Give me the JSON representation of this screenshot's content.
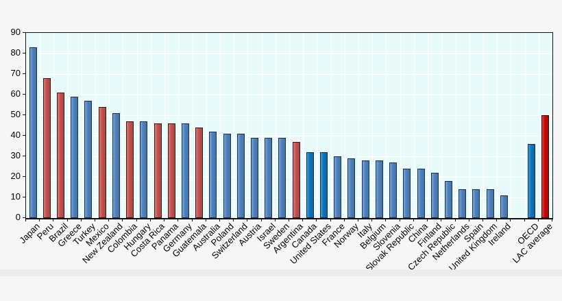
{
  "figure": {
    "background": "#f6f6f6",
    "bottom_strip_color": "#ececec"
  },
  "chart_data": {
    "type": "bar",
    "title": "",
    "xlabel": "",
    "ylabel": "",
    "ylim": [
      0,
      90
    ],
    "ytick_step": 10,
    "ytick_labels": [
      "0",
      "10",
      "20",
      "30",
      "40",
      "50",
      "60",
      "70",
      "80",
      "90"
    ],
    "grid": {
      "horizontal": true,
      "vertical": true,
      "color": "#ffffff"
    },
    "plot_background": "#e9fafa",
    "axis_color": "#111111",
    "legend": null,
    "colors": {
      "oecd_country": "#4d80bd",
      "oecd_country_edge": "#1b2f4d",
      "lac_country": "#c0504d",
      "lac_country_edge": "#3c1412",
      "highlight_country": "#0e72b8",
      "highlight_country_edge": "#0b2d4d",
      "lac_average": "#c40707",
      "lac_average_edge": "#470303"
    },
    "bars": [
      {
        "label": "Japan",
        "value": 83,
        "color_key": "oecd_country"
      },
      {
        "label": "Peru",
        "value": 68,
        "color_key": "lac_country"
      },
      {
        "label": "Brazil",
        "value": 61,
        "color_key": "lac_country"
      },
      {
        "label": "Greece",
        "value": 59,
        "color_key": "oecd_country"
      },
      {
        "label": "Turkey",
        "value": 57,
        "color_key": "oecd_country"
      },
      {
        "label": "Mexico",
        "value": 54,
        "color_key": "lac_country"
      },
      {
        "label": "New Zealand",
        "value": 51,
        "color_key": "oecd_country"
      },
      {
        "label": "Colombia",
        "value": 47,
        "color_key": "lac_country"
      },
      {
        "label": "Hungary",
        "value": 47,
        "color_key": "oecd_country"
      },
      {
        "label": "Costa Rica",
        "value": 46,
        "color_key": "lac_country"
      },
      {
        "label": "Panama",
        "value": 46,
        "color_key": "lac_country"
      },
      {
        "label": "Germany",
        "value": 46,
        "color_key": "oecd_country"
      },
      {
        "label": "Guatemala",
        "value": 44,
        "color_key": "lac_country"
      },
      {
        "label": "Australia",
        "value": 42,
        "color_key": "oecd_country"
      },
      {
        "label": "Poland",
        "value": 41,
        "color_key": "oecd_country"
      },
      {
        "label": "Switzerland",
        "value": 41,
        "color_key": "oecd_country"
      },
      {
        "label": "Austria",
        "value": 39,
        "color_key": "oecd_country"
      },
      {
        "label": "Israel",
        "value": 39,
        "color_key": "oecd_country"
      },
      {
        "label": "Sweden",
        "value": 39,
        "color_key": "oecd_country"
      },
      {
        "label": "Argentina",
        "value": 37,
        "color_key": "lac_country"
      },
      {
        "label": "Canada",
        "value": 32,
        "color_key": "highlight_country"
      },
      {
        "label": "United States",
        "value": 32,
        "color_key": "highlight_country"
      },
      {
        "label": "France",
        "value": 30,
        "color_key": "oecd_country"
      },
      {
        "label": "Norway",
        "value": 29,
        "color_key": "oecd_country"
      },
      {
        "label": "Italy",
        "value": 28,
        "color_key": "oecd_country"
      },
      {
        "label": "Belgium",
        "value": 28,
        "color_key": "oecd_country"
      },
      {
        "label": "Slovenia",
        "value": 27,
        "color_key": "oecd_country"
      },
      {
        "label": "Slovak Republic",
        "value": 24,
        "color_key": "oecd_country"
      },
      {
        "label": "China",
        "value": 24,
        "color_key": "oecd_country"
      },
      {
        "label": "Finland",
        "value": 22,
        "color_key": "oecd_country"
      },
      {
        "label": "Czech Republic",
        "value": 18,
        "color_key": "oecd_country"
      },
      {
        "label": "Netherlands",
        "value": 14,
        "color_key": "oecd_country"
      },
      {
        "label": "Spain",
        "value": 14,
        "color_key": "oecd_country"
      },
      {
        "label": "United Kingdom",
        "value": 14,
        "color_key": "oecd_country"
      },
      {
        "label": "Ireland",
        "value": 11,
        "color_key": "oecd_country"
      },
      {
        "label": "OECD",
        "value": 36,
        "color_key": "highlight_country",
        "gap_before": true
      },
      {
        "label": "LAC average",
        "value": 50,
        "color_key": "lac_average"
      }
    ]
  }
}
